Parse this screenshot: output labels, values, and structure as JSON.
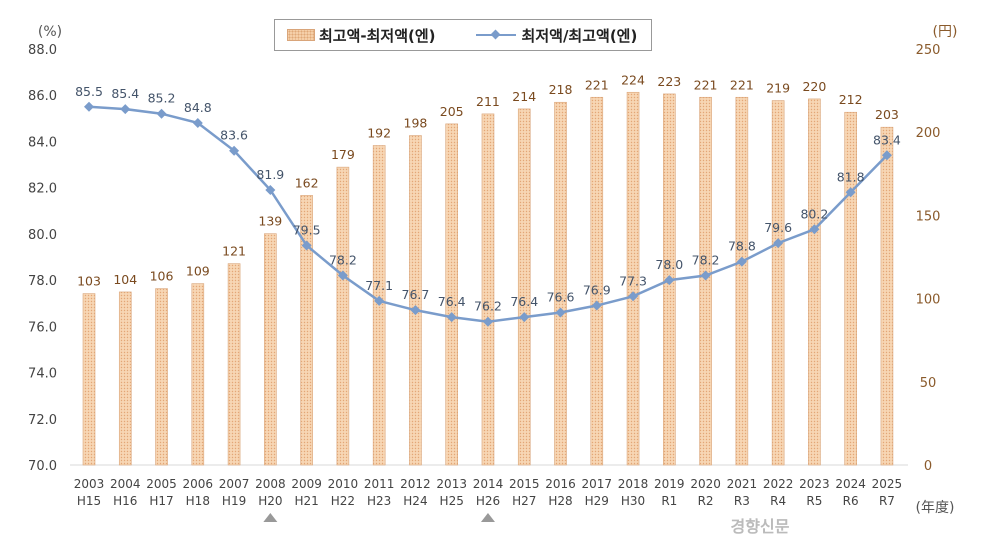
{
  "chart_data": {
    "type": "bar+line",
    "legend": [
      "최고액-최저액(엔)",
      "최저액/최고액(엔)"
    ],
    "left_unit": "(%)",
    "right_unit": "(円)",
    "x_unit": "(年度)",
    "categories": [
      "2003",
      "2004",
      "2005",
      "2006",
      "2007",
      "2008",
      "2009",
      "2010",
      "2011",
      "2012",
      "2013",
      "2014",
      "2015",
      "2016",
      "2017",
      "2018",
      "2019",
      "2020",
      "2021",
      "2022",
      "2023",
      "2024",
      "2025"
    ],
    "era_labels": [
      "H15",
      "H16",
      "H17",
      "H18",
      "H19",
      "H20",
      "H21",
      "H22",
      "H23",
      "H24",
      "H25",
      "H26",
      "H27",
      "H28",
      "H29",
      "H30",
      "R1",
      "R2",
      "R3",
      "R4",
      "R5",
      "R6",
      "R7"
    ],
    "series": [
      {
        "name": "최고액-최저액(엔)",
        "type": "bar",
        "axis": "right",
        "values": [
          103,
          104,
          106,
          109,
          121,
          139,
          162,
          179,
          192,
          198,
          205,
          211,
          214,
          218,
          221,
          224,
          223,
          221,
          221,
          219,
          220,
          212,
          203
        ]
      },
      {
        "name": "최저액/최고액(엔)",
        "type": "line",
        "axis": "left",
        "values": [
          85.5,
          85.4,
          85.2,
          84.8,
          83.6,
          81.9,
          79.5,
          78.2,
          77.1,
          76.7,
          76.4,
          76.2,
          76.4,
          76.6,
          76.9,
          77.3,
          78.0,
          78.2,
          78.8,
          79.6,
          80.2,
          81.8,
          83.4
        ]
      }
    ],
    "left_ylim": [
      70,
      88
    ],
    "left_ticks": [
      "70.0",
      "72.0",
      "74.0",
      "76.0",
      "78.0",
      "80.0",
      "82.0",
      "84.0",
      "86.0",
      "88.0"
    ],
    "right_ylim": [
      0,
      250
    ],
    "right_ticks": [
      "0",
      "50",
      "100",
      "150",
      "200",
      "250"
    ],
    "markers_under": [
      "2008",
      "2014"
    ],
    "grid": false,
    "legend_placement": "top",
    "colors": {
      "bar": "#f5cfa8",
      "bar_label": "#7a4a1f",
      "line": "#7a9ccb",
      "line_label": "#44546a",
      "right_axis": "#8a5a2b"
    }
  },
  "watermark": "경향신문"
}
